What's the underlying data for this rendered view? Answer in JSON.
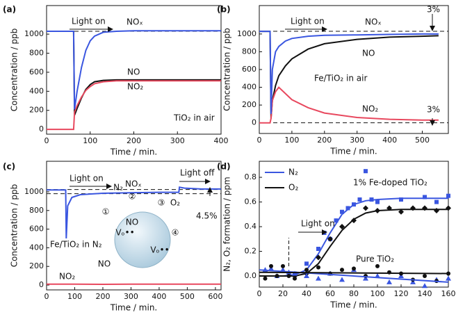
{
  "chart_data": [
    {
      "type": "line",
      "panel_label": "(a)",
      "xlabel": "Time / min.",
      "ylabel": "Concentration / ppb",
      "xlim": [
        0,
        400
      ],
      "xticks": [
        0,
        100,
        200,
        300,
        400
      ],
      "ylim": [
        -50,
        1300
      ],
      "yticks": [
        0,
        200,
        400,
        600,
        800,
        1000
      ],
      "hlines": [
        1030
      ],
      "annotations": [
        "Light on",
        "TiO₂ in air"
      ],
      "series": [
        {
          "name": "NO",
          "color": "#111111",
          "x": [
            0,
            55,
            62,
            64,
            70,
            80,
            90,
            100,
            110,
            130,
            160,
            200,
            300,
            400
          ],
          "values": [
            1030,
            1030,
            1030,
            150,
            220,
            330,
            420,
            470,
            500,
            515,
            520,
            520,
            520,
            520
          ]
        },
        {
          "name": "NO₂",
          "color": "#e8485e",
          "x": [
            0,
            55,
            62,
            64,
            70,
            80,
            90,
            100,
            110,
            130,
            160,
            200,
            300,
            400
          ],
          "values": [
            0,
            0,
            0,
            180,
            250,
            340,
            410,
            450,
            480,
            500,
            510,
            510,
            510,
            510
          ]
        },
        {
          "name": "NOₓ",
          "color": "#3a56e0",
          "x": [
            0,
            55,
            62,
            64,
            70,
            80,
            90,
            100,
            110,
            130,
            160,
            200,
            300,
            400
          ],
          "values": [
            1030,
            1030,
            1030,
            210,
            400,
            650,
            830,
            930,
            980,
            1020,
            1030,
            1035,
            1035,
            1035
          ]
        }
      ]
    },
    {
      "type": "line",
      "panel_label": "(b)",
      "xlabel": "Time / min.",
      "ylabel": "Concentration / ppb",
      "xlim": [
        0,
        580
      ],
      "xticks": [
        0,
        100,
        200,
        300,
        400,
        500
      ],
      "ylim": [
        -120,
        1320
      ],
      "yticks": [
        0,
        200,
        400,
        600,
        800,
        1000
      ],
      "hlines": [
        1030,
        0
      ],
      "annotations": [
        "Light on",
        "Fe/TiO₂ in air",
        "3%",
        "3%"
      ],
      "series": [
        {
          "name": "NO",
          "color": "#111111",
          "x": [
            0,
            30,
            33,
            36,
            40,
            50,
            60,
            80,
            100,
            150,
            200,
            300,
            400,
            500,
            550
          ],
          "values": [
            1030,
            1030,
            1030,
            50,
            250,
            420,
            530,
            640,
            720,
            830,
            890,
            940,
            965,
            975,
            980
          ]
        },
        {
          "name": "NO₂",
          "color": "#e8485e",
          "x": [
            0,
            30,
            33,
            36,
            40,
            50,
            60,
            80,
            100,
            150,
            200,
            300,
            400,
            500,
            550
          ],
          "values": [
            0,
            0,
            0,
            50,
            250,
            350,
            400,
            330,
            260,
            170,
            110,
            60,
            40,
            30,
            30
          ]
        },
        {
          "name": "NOₓ",
          "color": "#3a56e0",
          "x": [
            0,
            30,
            33,
            36,
            40,
            50,
            60,
            80,
            100,
            150,
            200,
            300,
            400,
            500,
            550
          ],
          "values": [
            1030,
            1030,
            1030,
            100,
            600,
            800,
            860,
            920,
            950,
            975,
            985,
            990,
            995,
            1000,
            1000
          ]
        }
      ]
    },
    {
      "type": "line",
      "panel_label": "(c)",
      "xlabel": "Time / min.",
      "ylabel": "Concentration / ppb",
      "xlim": [
        0,
        620
      ],
      "xticks": [
        0,
        100,
        200,
        300,
        400,
        500,
        600
      ],
      "ylim": [
        -52,
        1328
      ],
      "yticks": [
        0,
        200,
        400,
        600,
        800,
        1000
      ],
      "hlines": [
        1025,
        980
      ],
      "annotations": [
        "Light on",
        "Light off",
        "Fe/TiO₂ in N₂",
        "4.5%"
      ],
      "inset_labels": [
        "①",
        "②",
        "③",
        "④",
        "N₂",
        "NO",
        "O₂",
        "NO",
        "Vₒ••",
        "Vₒ••"
      ],
      "series": [
        {
          "name": "NO₂",
          "color": "#e8485e",
          "x": [
            0,
            100,
            200,
            300,
            400,
            500,
            620
          ],
          "values": [
            10,
            10,
            8,
            10,
            9,
            10,
            10
          ]
        },
        {
          "name": "NOₓ",
          "color": "#3a56e0",
          "x": [
            0,
            65,
            68,
            70,
            75,
            90,
            120,
            200,
            300,
            400,
            470,
            472,
            490,
            550,
            620
          ],
          "values": [
            1020,
            1020,
            1020,
            500,
            850,
            940,
            970,
            985,
            990,
            995,
            995,
            1050,
            1040,
            1030,
            1030
          ]
        }
      ]
    },
    {
      "type": "line",
      "panel_label": "(d)",
      "xlabel": "Time / min.",
      "ylabel": "N₂, O₂ formation / ppm",
      "xlim": [
        0,
        160
      ],
      "xticks": [
        0,
        20,
        40,
        60,
        80,
        100,
        120,
        140,
        160
      ],
      "ylim": [
        -0.09,
        0.93
      ],
      "yticks": [
        {
          "value": 0,
          "label": "0.0"
        },
        0.2,
        0.4,
        0.6,
        0.8
      ],
      "vlines": [
        25
      ],
      "legend": "upper left",
      "annotations": [
        "Light on",
        "1% Fe-doped TiO₂",
        "Pure TiO₂"
      ],
      "series": [
        {
          "name": "N₂",
          "color": "#3a56e0",
          "marker": "none",
          "x": [
            0,
            20,
            30,
            40,
            50,
            60,
            70,
            80,
            90,
            100,
            120,
            160
          ],
          "values": [
            0.0,
            0.0,
            0.01,
            0.05,
            0.18,
            0.35,
            0.5,
            0.58,
            0.61,
            0.62,
            0.63,
            0.63
          ]
        },
        {
          "name": "O₂",
          "color": "#111111",
          "marker": "none",
          "x": [
            0,
            20,
            30,
            40,
            50,
            60,
            70,
            80,
            90,
            100,
            120,
            160
          ],
          "values": [
            0.0,
            0.0,
            0.0,
            0.02,
            0.1,
            0.24,
            0.37,
            0.46,
            0.51,
            0.53,
            0.54,
            0.54
          ]
        },
        {
          "color": "#3a56e0",
          "marker": "square",
          "x": [
            30,
            40,
            50,
            55,
            60,
            65,
            70,
            75,
            80,
            85,
            90,
            95,
            100,
            120,
            140,
            150,
            160
          ],
          "values": [
            0.02,
            0.1,
            0.22,
            0.35,
            0.3,
            0.45,
            0.52,
            0.55,
            0.58,
            0.62,
            0.85,
            0.62,
            0.6,
            0.62,
            0.64,
            0.6,
            0.65
          ]
        },
        {
          "color": "#111111",
          "marker": "diamond",
          "x": [
            30,
            40,
            50,
            60,
            70,
            80,
            90,
            100,
            110,
            120,
            130,
            140,
            150,
            160
          ],
          "values": [
            0.0,
            0.02,
            0.15,
            0.3,
            0.4,
            0.45,
            0.55,
            0.53,
            0.55,
            0.52,
            0.55,
            0.55,
            0.53,
            0.55
          ]
        },
        {
          "color": "#3a56e0",
          "marker": "triangle",
          "x": [
            5,
            10,
            15,
            20,
            25,
            30,
            40,
            50,
            60,
            70,
            80,
            90,
            100,
            110,
            120,
            130,
            140,
            150,
            160
          ],
          "values": [
            0.05,
            0.06,
            0.0,
            0.05,
            0.03,
            0.02,
            0.0,
            -0.02,
            0.02,
            -0.03,
            0.05,
            -0.02,
            0.0,
            -0.05,
            0.0,
            -0.05,
            -0.08,
            -0.03,
            -0.02
          ]
        },
        {
          "color": "#111111",
          "marker": "circle",
          "x": [
            5,
            10,
            15,
            20,
            25,
            30,
            40,
            50,
            60,
            70,
            80,
            90,
            100,
            110,
            120,
            130,
            140,
            150,
            160
          ],
          "values": [
            -0.02,
            0.08,
            0.0,
            0.08,
            0.0,
            -0.02,
            0.05,
            0.07,
            0.02,
            0.05,
            0.06,
            0.0,
            0.08,
            0.03,
            0.02,
            -0.03,
            0.0,
            -0.04,
            0.02
          ]
        },
        {
          "color": "#3a56e0",
          "marker": "none",
          "x": [
            0,
            160
          ],
          "values": [
            0.05,
            -0.05
          ]
        },
        {
          "color": "#111111",
          "marker": "none",
          "x": [
            0,
            160
          ],
          "values": [
            0.03,
            0.02
          ]
        }
      ]
    }
  ]
}
